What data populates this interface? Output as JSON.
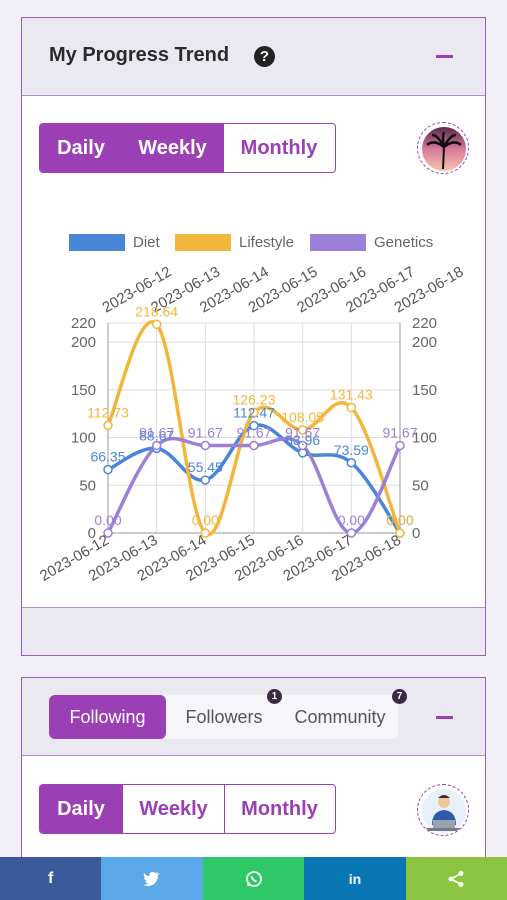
{
  "progress": {
    "title": "My Progress Trend",
    "help": "?",
    "periods": [
      "Daily",
      "Weekly",
      "Monthly"
    ]
  },
  "social": {
    "tabs": [
      {
        "label": "Following"
      },
      {
        "label": "Followers",
        "badge": "1"
      },
      {
        "label": "Community",
        "badge": "7"
      }
    ],
    "periods": [
      "Daily",
      "Weekly",
      "Monthly"
    ]
  },
  "share": [
    {
      "name": "facebook",
      "glyph": "f",
      "color": "#3b5a9a"
    },
    {
      "name": "twitter",
      "glyph": "t",
      "color": "#5aa8e8"
    },
    {
      "name": "whatsapp",
      "glyph": "w",
      "color": "#2ec866"
    },
    {
      "name": "linkedin",
      "glyph": "in",
      "color": "#0a77b5"
    },
    {
      "name": "share",
      "glyph": "<",
      "color": "#8bc43f"
    }
  ],
  "chart_data": {
    "type": "line",
    "categories": [
      "2023-06-12",
      "2023-06-13",
      "2023-06-14",
      "2023-06-15",
      "2023-06-16",
      "2023-06-17",
      "2023-06-18"
    ],
    "series": [
      {
        "name": "Diet",
        "color": "#4a86d8",
        "values": [
          66.35,
          88.67,
          55.45,
          112.47,
          83.96,
          73.59,
          0.0
        ]
      },
      {
        "name": "Lifestyle",
        "color": "#f2b63a",
        "values": [
          112.73,
          218.64,
          0.0,
          126.23,
          108.05,
          131.43,
          0.0
        ]
      },
      {
        "name": "Genetics",
        "color": "#9b7fd8",
        "values": [
          0.0,
          91.67,
          91.67,
          91.67,
          91.67,
          0.0,
          91.67
        ]
      }
    ],
    "yticks": [
      0,
      50,
      100,
      150,
      200,
      220
    ],
    "ylim": [
      0,
      220
    ]
  }
}
